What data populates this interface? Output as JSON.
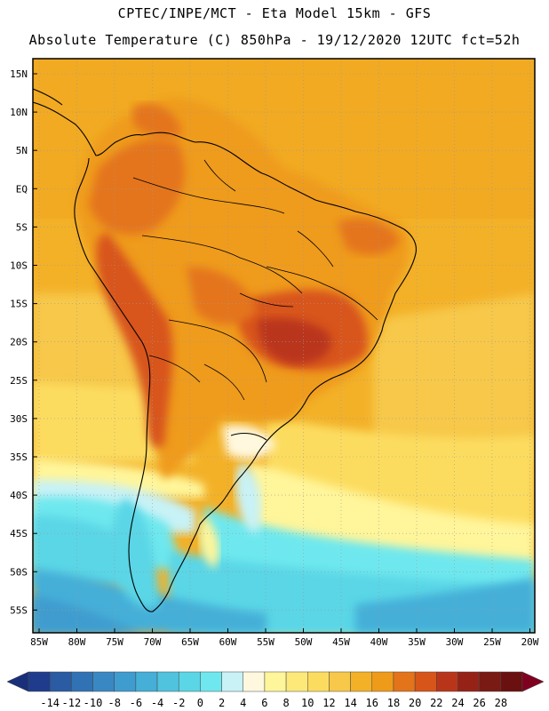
{
  "header": {
    "line1": "CPTEC/INPE/MCT -  Eta Model 15km - GFS",
    "line2": "Absolute Temperature (C) 850hPa - 19/12/2020 12UTC fct=52h"
  },
  "map": {
    "lat_labels": [
      "15N",
      "10N",
      "5N",
      "EQ",
      "5S",
      "10S",
      "15S",
      "20S",
      "25S",
      "30S",
      "35S",
      "40S",
      "45S",
      "50S",
      "55S"
    ],
    "lon_labels": [
      "85W",
      "80W",
      "75W",
      "70W",
      "65W",
      "60W",
      "55W",
      "50W",
      "45W",
      "40W",
      "35W",
      "30W",
      "25W",
      "20W"
    ]
  },
  "colorbar": {
    "ticks": [
      "-14",
      "-12",
      "-10",
      "-8",
      "-6",
      "-4",
      "-2",
      "0",
      "2",
      "4",
      "6",
      "8",
      "10",
      "12",
      "14",
      "16",
      "18",
      "20",
      "22",
      "24",
      "26",
      "28"
    ],
    "colors": [
      "#1f3c8c",
      "#2a5ba3",
      "#3172b4",
      "#3a88c3",
      "#3f9ccf",
      "#45afd8",
      "#50c3df",
      "#5ad6e6",
      "#6ee8ee",
      "#c8f2f6",
      "#fff8de",
      "#fff59a",
      "#fde97a",
      "#fcdc5f",
      "#f7c84a",
      "#f3b128",
      "#ef9b1a",
      "#e4741a",
      "#d8551a",
      "#b9351a",
      "#962217",
      "#7a1a14",
      "#6a1010"
    ]
  }
}
